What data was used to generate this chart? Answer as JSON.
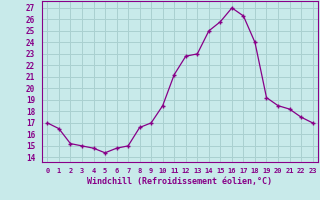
{
  "x": [
    0,
    1,
    2,
    3,
    4,
    5,
    6,
    7,
    8,
    9,
    10,
    11,
    12,
    13,
    14,
    15,
    16,
    17,
    18,
    19,
    20,
    21,
    22,
    23
  ],
  "y": [
    17.0,
    16.5,
    15.2,
    15.0,
    14.8,
    14.4,
    14.8,
    15.0,
    16.6,
    17.0,
    18.5,
    21.2,
    22.8,
    23.0,
    25.0,
    25.8,
    27.0,
    26.3,
    24.0,
    19.2,
    18.5,
    18.2,
    17.5,
    17.0
  ],
  "line_color": "#880088",
  "marker": "+",
  "bg_color": "#c8eaea",
  "grid_color": "#aad0d0",
  "xlabel": "Windchill (Refroidissement éolien,°C)",
  "ylabel_ticks": [
    14,
    15,
    16,
    17,
    18,
    19,
    20,
    21,
    22,
    23,
    24,
    25,
    26,
    27
  ],
  "ylim": [
    13.6,
    27.6
  ],
  "xlim": [
    -0.5,
    23.5
  ]
}
